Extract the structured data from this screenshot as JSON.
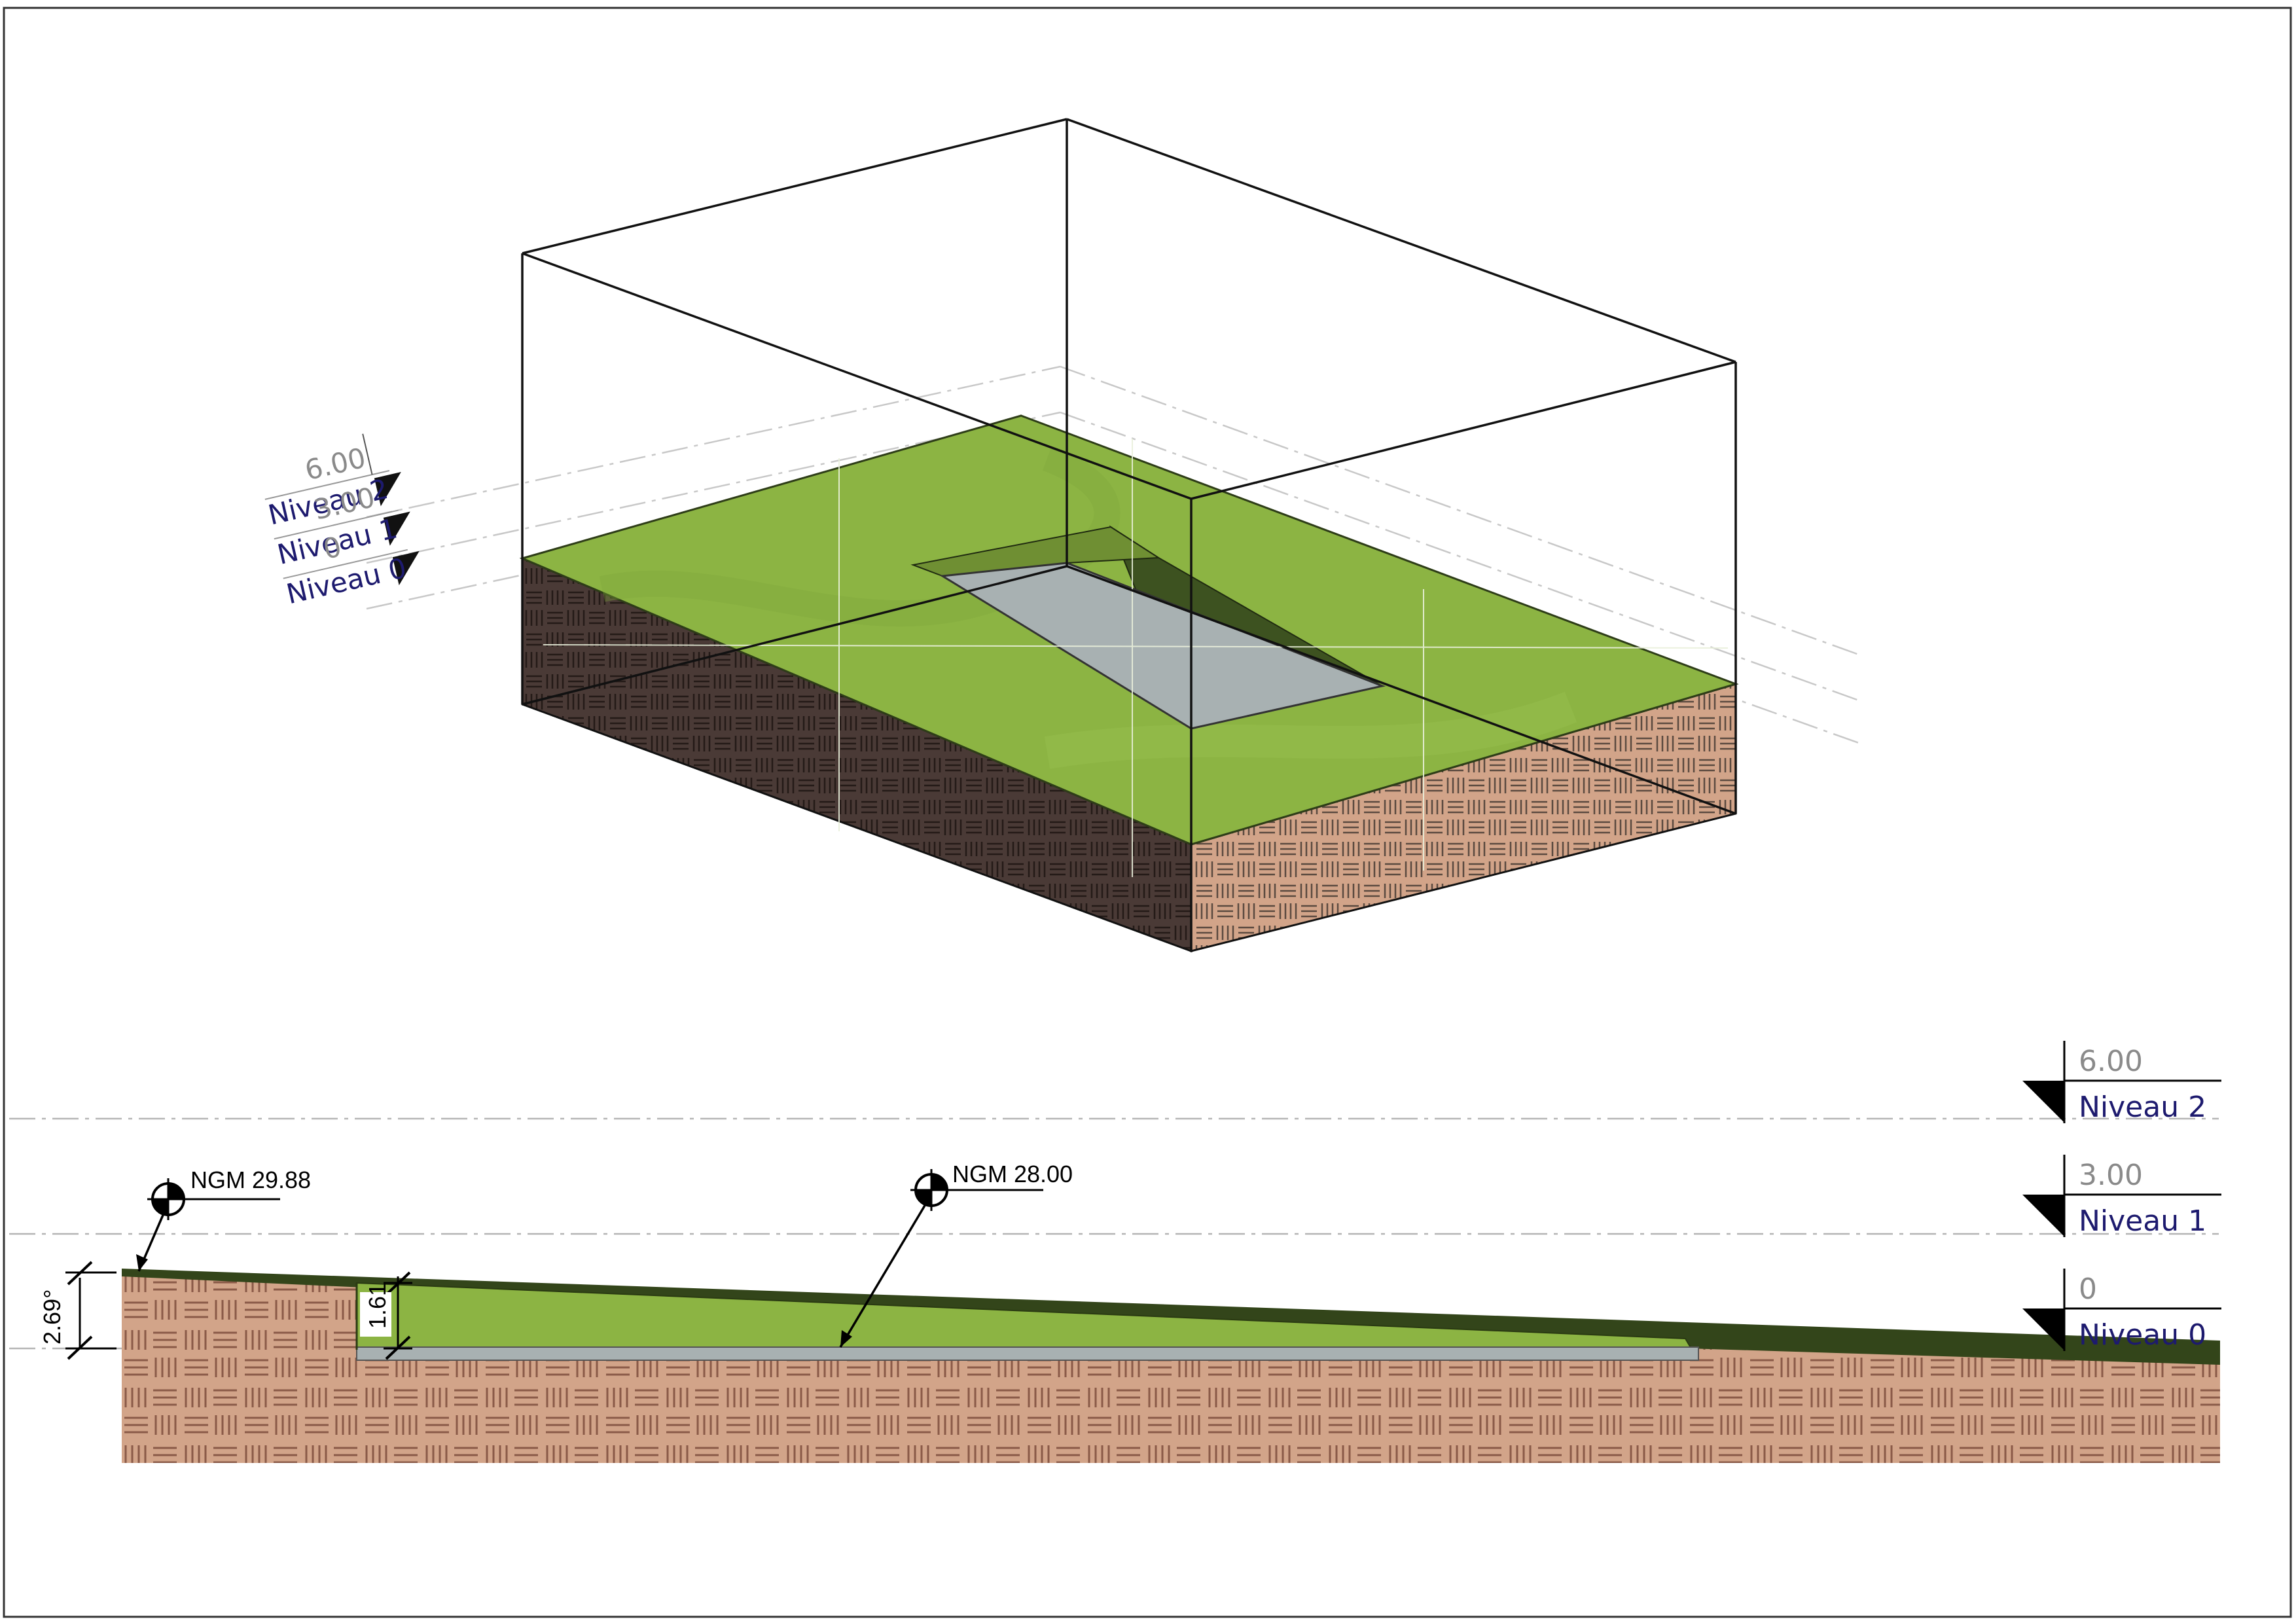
{
  "colors": {
    "grass": "#8cb443",
    "grass_dark": "#33451a",
    "soil": "#d2a489",
    "soil_dark": "#4a3a36",
    "paving": "#a8b1b2",
    "level_name": "#1d1a6e",
    "level_value": "#8a8a8a"
  },
  "iso_levels": [
    {
      "value": "6.00",
      "name": "Niveau 2"
    },
    {
      "value": "3.00",
      "name": "Niveau 1"
    },
    {
      "value": "0",
      "name": "Niveau 0"
    }
  ],
  "section_levels": [
    {
      "value": "6.00",
      "name": "Niveau 2"
    },
    {
      "value": "3.00",
      "name": "Niveau 1"
    },
    {
      "value": "0",
      "name": "Niveau 0"
    }
  ],
  "spot_elevations": [
    {
      "label": "NGM 29.88"
    },
    {
      "label": "NGM 28.00"
    }
  ],
  "dimensions": {
    "slope_angle": "2.69°",
    "excavation_depth": "1.61"
  }
}
